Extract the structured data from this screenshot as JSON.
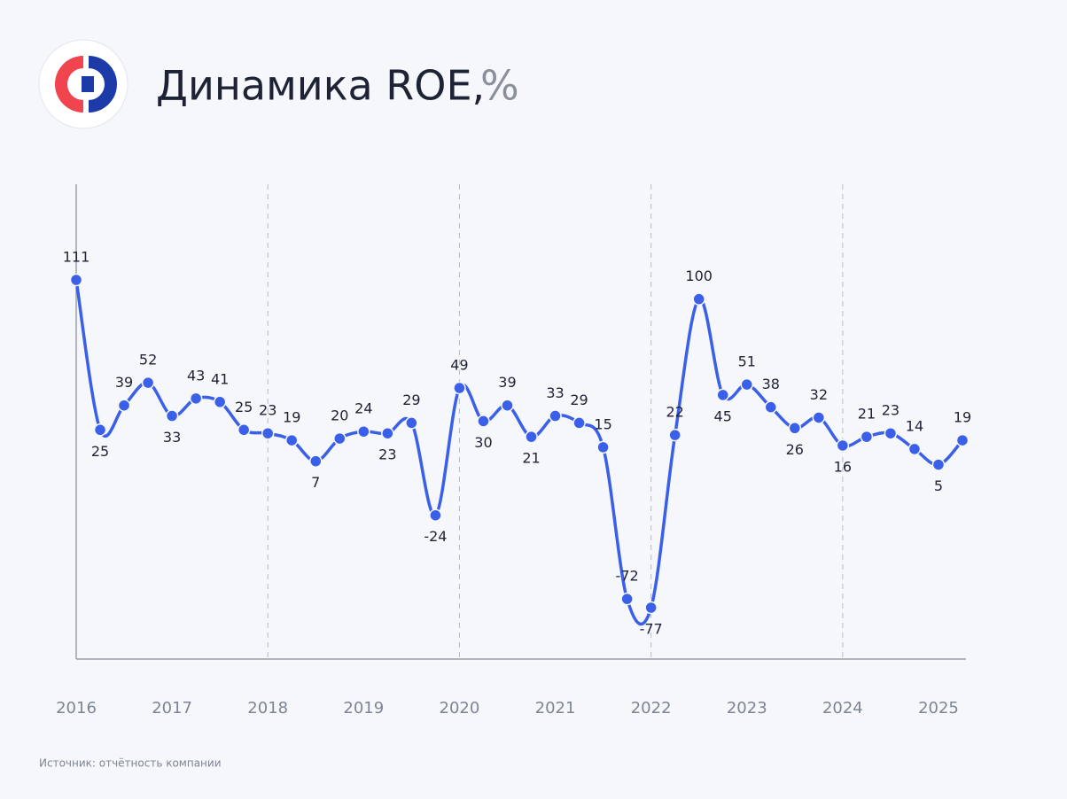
{
  "chart_data": {
    "type": "line",
    "title": "Динамика ROE,",
    "title_unit": "%",
    "source": "Источник: отчётность компании",
    "categories": [
      "2016",
      null,
      null,
      null,
      "2017",
      null,
      null,
      null,
      "2018",
      null,
      null,
      null,
      "2019",
      null,
      null,
      null,
      "2020",
      null,
      null,
      null,
      "2021",
      null,
      null,
      null,
      "2022",
      null,
      null,
      null,
      "2023",
      null,
      null,
      null,
      "2024",
      null,
      null,
      null,
      "2025",
      null
    ],
    "series": [
      {
        "name": "ROE",
        "color": "#3a5fe8",
        "values": [
          111,
          25,
          39,
          52,
          33,
          43,
          41,
          25,
          23,
          19,
          7,
          20,
          24,
          23,
          29,
          -24,
          49,
          30,
          39,
          21,
          33,
          29,
          15,
          -72,
          -77,
          22,
          100,
          45,
          51,
          38,
          26,
          32,
          16,
          21,
          23,
          14,
          5,
          19
        ]
      }
    ]
  }
}
